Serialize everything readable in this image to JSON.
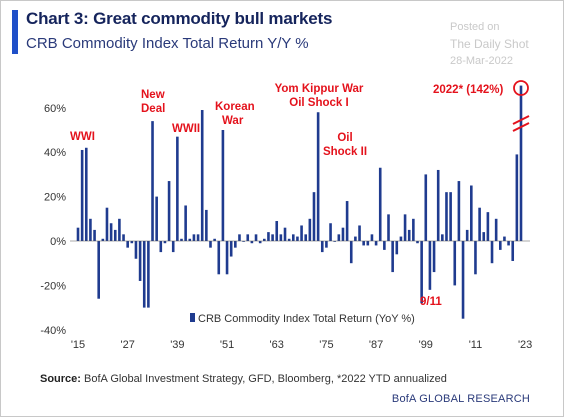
{
  "header": {
    "title": "Chart 3: Great commodity bull markets",
    "subtitle": "CRB Commodity Index Total Return Y/Y %"
  },
  "watermark": {
    "line1": "Posted on",
    "line2": "The Daily Shot",
    "line3": "28-Mar-2022"
  },
  "footer": {
    "source_label": "Source:",
    "source_text": "BofA Global Investment Strategy, GFD, Bloomberg, *2022 YTD annualized",
    "brand": "BofA GLOBAL RESEARCH"
  },
  "colors": {
    "bar": "#1f3b8f",
    "annotation": "#e4121c",
    "accent": "#1f4fc8"
  },
  "chart_data": {
    "type": "bar",
    "title": "",
    "xlabel": "",
    "ylabel": "",
    "ylim": [
      -40,
      70
    ],
    "y_ticks": [
      "60%",
      "40%",
      "20%",
      "0%",
      "-20%",
      "-40%"
    ],
    "y_tick_values": [
      60,
      40,
      20,
      0,
      -20,
      -40
    ],
    "x_tick_labels": [
      "'15",
      "'27",
      "'39",
      "'51",
      "'63",
      "'75",
      "'87",
      "'99",
      "'11",
      "'23"
    ],
    "x_tick_years": [
      1915,
      1927,
      1939,
      1951,
      1963,
      1975,
      1987,
      1999,
      2011,
      2023
    ],
    "legend": "CRB Commodity Index Total Return (YoY %)",
    "legend_position": "bottom-center",
    "grid": false,
    "series": [
      {
        "years": [
          1915,
          1916,
          1917,
          1918,
          1919,
          1920,
          1921,
          1922,
          1923,
          1924,
          1925,
          1926,
          1927,
          1928,
          1929,
          1930,
          1931,
          1932,
          1933,
          1934,
          1935,
          1936,
          1937,
          1938,
          1939,
          1940,
          1941,
          1942,
          1943,
          1944,
          1945,
          1946,
          1947,
          1948,
          1949,
          1950,
          1951,
          1952,
          1953,
          1954,
          1955,
          1956,
          1957,
          1958,
          1959,
          1960,
          1961,
          1962,
          1963,
          1964,
          1965,
          1966,
          1967,
          1968,
          1969,
          1970,
          1971,
          1972,
          1973,
          1974,
          1975,
          1976,
          1977,
          1978,
          1979,
          1980,
          1981,
          1982,
          1983,
          1984,
          1985,
          1986,
          1987,
          1988,
          1989,
          1990,
          1991,
          1992,
          1993,
          1994,
          1995,
          1996,
          1997,
          1998,
          1999,
          2000,
          2001,
          2002,
          2003,
          2004,
          2005,
          2006,
          2007,
          2008,
          2009,
          2010,
          2011,
          2012,
          2013,
          2014,
          2015,
          2016,
          2017,
          2018,
          2019,
          2020,
          2021,
          2022
        ],
        "values": [
          6,
          41,
          42,
          10,
          5,
          -26,
          1,
          15,
          8,
          5,
          10,
          3,
          -3,
          -1,
          -8,
          -18,
          -30,
          -30,
          54,
          20,
          -5,
          -1,
          27,
          -5,
          47,
          1,
          16,
          1,
          3,
          3,
          59,
          14,
          -3,
          1,
          -15,
          50,
          -15,
          -7,
          -3,
          3,
          0,
          3,
          -1,
          3,
          -1,
          1,
          4,
          3,
          9,
          3,
          6,
          1,
          3,
          2,
          7,
          3,
          10,
          22,
          58,
          -5,
          -3,
          8,
          0,
          3,
          6,
          18,
          -10,
          2,
          7,
          -2,
          -2,
          3,
          -2,
          33,
          -4,
          12,
          -14,
          -6,
          2,
          12,
          5,
          10,
          -1,
          -28,
          30,
          -22,
          -14,
          32,
          3,
          22,
          22,
          -20,
          27,
          -35,
          5,
          25,
          -15,
          15,
          4,
          13,
          -10,
          10,
          -4,
          2,
          -2,
          -9,
          39,
          70
        ]
      }
    ],
    "annotations": [
      {
        "text": "WWI",
        "x_year": 1917
      },
      {
        "text": "New",
        "x_year": 1930
      },
      {
        "text": "Deal",
        "x_year": 1930
      },
      {
        "text": "WWII",
        "x_year": 1940
      },
      {
        "text": "Korean",
        "x_year": 1950
      },
      {
        "text": "War",
        "x_year": 1950
      },
      {
        "text": "Yom Kippur War",
        "x_year": 1976
      },
      {
        "text": "Oil Shock I",
        "x_year": 1976
      },
      {
        "text": "Oil",
        "x_year": 1980
      },
      {
        "text": "Shock II",
        "x_year": 1980
      },
      {
        "text": "9/11",
        "x_year": 2001
      },
      {
        "text": "2022* (142%)",
        "x_year": 2017
      }
    ]
  }
}
